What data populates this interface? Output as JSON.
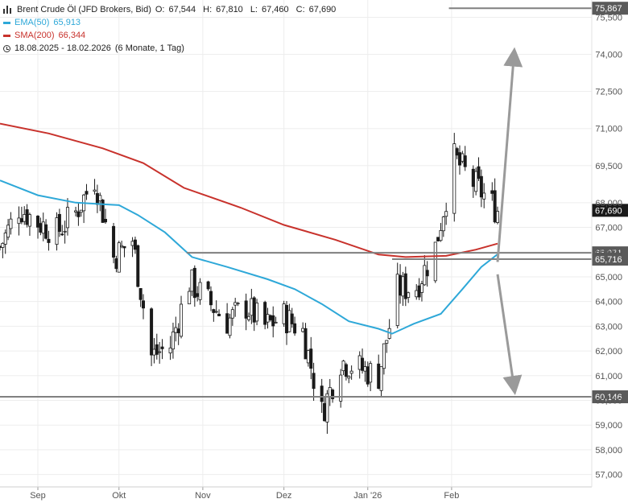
{
  "legend": {
    "title": "Brent Crude Öl (JFD Brokers, Bid)",
    "ohlc": [
      {
        "key": "O:",
        "value": "67,544"
      },
      {
        "key": "H:",
        "value": "67,810"
      },
      {
        "key": "L:",
        "value": "67,460"
      },
      {
        "key": "C:",
        "value": "67,690"
      }
    ],
    "ema_label": "EMA(50)",
    "ema_value": "65,913",
    "sma_label": "SMA(200)",
    "sma_value": "66,344",
    "range": "18.08.2025 - 18.02.2026",
    "period": "(6 Monate, 1 Tag)"
  },
  "colors": {
    "ema": "#2ea8d8",
    "sma": "#c8322c",
    "candle": "#1a1a1a",
    "level": "#808080",
    "arrow": "#9a9a9a",
    "price_tag": "#1a1a1a"
  },
  "chart_data": {
    "type": "candlestick",
    "y_range": [
      56.5,
      76.2
    ],
    "y_ticks": [
      57,
      58,
      59,
      60,
      61,
      62,
      63,
      64,
      65,
      66,
      67,
      68,
      69.5,
      71,
      72.5,
      74,
      75.5
    ],
    "y_tick_labels": [
      "57,000",
      "58,000",
      "59,000",
      "60,000",
      "61,000",
      "62,000",
      "63,000",
      "64,000",
      "65,000",
      "66,000",
      "67,000",
      "68,000",
      "69,500",
      "71,000",
      "72,500",
      "74,000",
      "75,500"
    ],
    "x_labels": [
      "Sep",
      "Okt",
      "Nov",
      "Dez",
      "Jan '26",
      "Feb"
    ],
    "x_label_dates": [
      "2025-09-01",
      "2025-10-01",
      "2025-11-01",
      "2025-12-01",
      "2026-01-01",
      "2026-02-01"
    ],
    "x_range": [
      "2025-08-18",
      "2026-02-18"
    ],
    "closes": [
      {
        "date": "2025-08-18",
        "close": 66.2
      },
      {
        "date": "2025-08-25",
        "close": 67.8
      },
      {
        "date": "2025-09-01",
        "close": 67.2
      },
      {
        "date": "2025-09-08",
        "close": 66.8
      },
      {
        "date": "2025-09-15",
        "close": 67.6
      },
      {
        "date": "2025-09-22",
        "close": 69.0
      },
      {
        "date": "2025-09-29",
        "close": 65.8
      },
      {
        "date": "2025-10-06",
        "close": 66.5
      },
      {
        "date": "2025-10-13",
        "close": 61.8
      },
      {
        "date": "2025-10-20",
        "close": 62.2
      },
      {
        "date": "2025-10-27",
        "close": 64.8
      },
      {
        "date": "2025-11-03",
        "close": 64.0
      },
      {
        "date": "2025-11-10",
        "close": 63.2
      },
      {
        "date": "2025-11-17",
        "close": 63.8
      },
      {
        "date": "2025-11-24",
        "close": 63.0
      },
      {
        "date": "2025-12-01",
        "close": 63.4
      },
      {
        "date": "2025-12-08",
        "close": 62.8
      },
      {
        "date": "2025-12-15",
        "close": 59.5
      },
      {
        "date": "2025-12-22",
        "close": 61.6
      },
      {
        "date": "2025-12-29",
        "close": 61.3
      },
      {
        "date": "2026-01-05",
        "close": 61.0
      },
      {
        "date": "2026-01-12",
        "close": 64.5
      },
      {
        "date": "2026-01-19",
        "close": 64.6
      },
      {
        "date": "2026-01-26",
        "close": 66.2
      },
      {
        "date": "2026-02-02",
        "close": 69.8
      },
      {
        "date": "2026-02-09",
        "close": 68.8
      },
      {
        "date": "2026-02-18",
        "close": 67.69
      }
    ],
    "ema": {
      "name": "EMA(50)",
      "points": [
        {
          "date": "2025-08-18",
          "value": 68.9
        },
        {
          "date": "2025-09-01",
          "value": 68.3
        },
        {
          "date": "2025-09-15",
          "value": 68.0
        },
        {
          "date": "2025-10-01",
          "value": 67.9
        },
        {
          "date": "2025-10-08",
          "value": 67.5
        },
        {
          "date": "2025-10-18",
          "value": 66.8
        },
        {
          "date": "2025-10-28",
          "value": 65.8
        },
        {
          "date": "2025-11-10",
          "value": 65.4
        },
        {
          "date": "2025-11-25",
          "value": 64.9
        },
        {
          "date": "2025-12-05",
          "value": 64.5
        },
        {
          "date": "2025-12-15",
          "value": 63.9
        },
        {
          "date": "2025-12-25",
          "value": 63.2
        },
        {
          "date": "2026-01-05",
          "value": 62.9
        },
        {
          "date": "2026-01-10",
          "value": 62.7
        },
        {
          "date": "2026-01-18",
          "value": 63.1
        },
        {
          "date": "2026-01-28",
          "value": 63.5
        },
        {
          "date": "2026-02-05",
          "value": 64.5
        },
        {
          "date": "2026-02-12",
          "value": 65.4
        },
        {
          "date": "2026-02-18",
          "value": 65.913
        }
      ]
    },
    "sma": {
      "name": "SMA(200)",
      "points": [
        {
          "date": "2025-08-18",
          "value": 71.2
        },
        {
          "date": "2025-09-05",
          "value": 70.8
        },
        {
          "date": "2025-09-25",
          "value": 70.2
        },
        {
          "date": "2025-10-10",
          "value": 69.6
        },
        {
          "date": "2025-10-25",
          "value": 68.6
        },
        {
          "date": "2025-11-15",
          "value": 67.8
        },
        {
          "date": "2025-12-01",
          "value": 67.1
        },
        {
          "date": "2025-12-20",
          "value": 66.5
        },
        {
          "date": "2026-01-05",
          "value": 65.9
        },
        {
          "date": "2026-01-15",
          "value": 65.8
        },
        {
          "date": "2026-01-30",
          "value": 65.85
        },
        {
          "date": "2026-02-10",
          "value": 66.1
        },
        {
          "date": "2026-02-18",
          "value": 66.344
        }
      ]
    },
    "levels": [
      {
        "label": "75,867",
        "value": 75.867,
        "from": "2026-01-31"
      },
      {
        "label": "65,971",
        "value": 65.971,
        "from": "2025-10-26"
      },
      {
        "label": "65,716",
        "value": 65.716,
        "from": "2026-01-10"
      },
      {
        "label": "60,146",
        "value": 60.146,
        "from": "2025-08-18"
      }
    ],
    "last_price": {
      "label": "67,690",
      "value": 67.69
    },
    "arrows": [
      {
        "from": {
          "date": "2026-02-18",
          "value": 65.6
        },
        "to": {
          "date": "2026-02-24",
          "value": 73.9
        }
      },
      {
        "from": {
          "date": "2026-02-18",
          "value": 65.1
        },
        "to": {
          "date": "2026-02-24",
          "value": 60.6
        }
      }
    ]
  }
}
